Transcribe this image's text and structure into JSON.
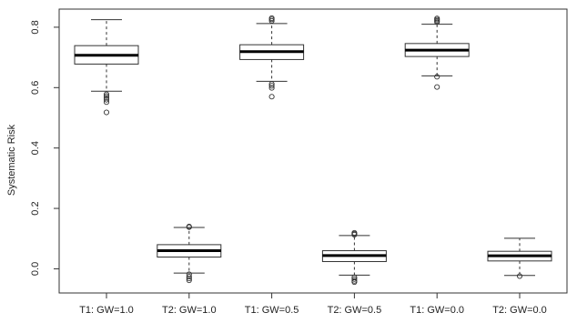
{
  "chart_data": {
    "type": "boxplot",
    "title": "",
    "xlabel": "",
    "ylabel": "Systematic Risk",
    "ylim": [
      -0.08,
      0.86
    ],
    "yticks": [
      0.0,
      0.2,
      0.4,
      0.6,
      0.8
    ],
    "ytick_labels": [
      "0.0",
      "0.2",
      "0.4",
      "0.6",
      "0.8"
    ],
    "grid": false,
    "legend": "none",
    "categories": [
      "T1: GW=1.0",
      "T2: GW=1.0",
      "T1: GW=0.5",
      "T2: GW=0.5",
      "T1: GW=0.0",
      "T2: GW=0.0"
    ],
    "boxes": [
      {
        "label": "T1: GW=1.0",
        "whisker_low": 0.588,
        "q1": 0.678,
        "median": 0.707,
        "q3": 0.739,
        "whisker_high": 0.825,
        "outliers": [
          0.578,
          0.572,
          0.566,
          0.56,
          0.552,
          0.518
        ]
      },
      {
        "label": "T2: GW=1.0",
        "whisker_low": -0.014,
        "q1": 0.039,
        "median": 0.06,
        "q3": 0.08,
        "whisker_high": 0.137,
        "outliers": [
          0.14,
          0.138,
          -0.018,
          -0.026,
          -0.032,
          -0.038
        ]
      },
      {
        "label": "T1: GW=0.5",
        "whisker_low": 0.621,
        "q1": 0.693,
        "median": 0.719,
        "q3": 0.742,
        "whisker_high": 0.812,
        "outliers": [
          0.83,
          0.826,
          0.821,
          0.612,
          0.606,
          0.599,
          0.57
        ]
      },
      {
        "label": "T2: GW=0.5",
        "whisker_low": -0.021,
        "q1": 0.024,
        "median": 0.044,
        "q3": 0.06,
        "whisker_high": 0.11,
        "outliers": [
          0.119,
          0.116,
          0.113,
          -0.028,
          -0.034,
          -0.04,
          -0.044
        ]
      },
      {
        "label": "T1: GW=0.0",
        "whisker_low": 0.639,
        "q1": 0.703,
        "median": 0.724,
        "q3": 0.746,
        "whisker_high": 0.81,
        "outliers": [
          0.829,
          0.825,
          0.821,
          0.817,
          0.636,
          0.602
        ]
      },
      {
        "label": "T2: GW=0.0",
        "whisker_low": -0.022,
        "q1": 0.026,
        "median": 0.043,
        "q3": 0.058,
        "whisker_high": 0.101,
        "outliers": [
          -0.024
        ]
      }
    ]
  },
  "colors": {
    "box_stroke": "#333333",
    "median": "#000000",
    "axis": "#333333",
    "text": "#222222",
    "background": "#ffffff"
  }
}
